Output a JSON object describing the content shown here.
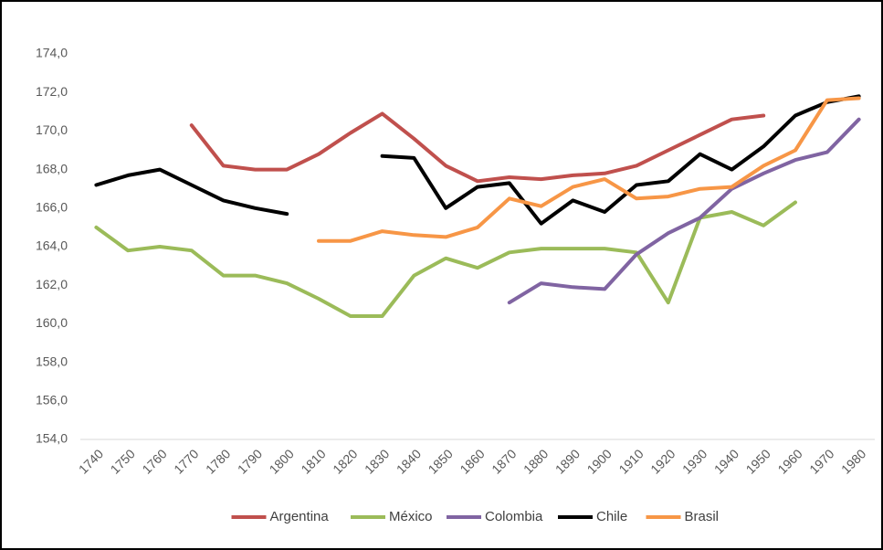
{
  "chart_data": {
    "type": "line",
    "categories": [
      "1740",
      "1750",
      "1760",
      "1770",
      "1780",
      "1790",
      "1800",
      "1810",
      "1820",
      "1830",
      "1840",
      "1850",
      "1860",
      "1870",
      "1880",
      "1890",
      "1900",
      "1910",
      "1920",
      "1930",
      "1940",
      "1950",
      "1960",
      "1970",
      "1980"
    ],
    "series": [
      {
        "name": "Argentina",
        "color": "#c0504d",
        "values": [
          null,
          null,
          null,
          170.3,
          168.2,
          168.0,
          168.0,
          168.8,
          169.9,
          170.9,
          169.6,
          168.2,
          167.4,
          167.6,
          167.5,
          167.7,
          167.8,
          168.2,
          169.0,
          169.8,
          170.6,
          170.8,
          null,
          null,
          null
        ]
      },
      {
        "name": "México",
        "color": "#9bbb59",
        "values": [
          165.0,
          163.8,
          164.0,
          163.8,
          162.5,
          162.5,
          162.1,
          161.3,
          160.4,
          160.4,
          162.5,
          163.4,
          162.9,
          163.7,
          163.9,
          163.9,
          163.9,
          163.7,
          161.1,
          165.5,
          165.8,
          165.1,
          166.3,
          null,
          null
        ]
      },
      {
        "name": "Colombia",
        "color": "#8064a2",
        "values": [
          null,
          null,
          null,
          null,
          null,
          null,
          null,
          null,
          null,
          null,
          null,
          null,
          null,
          161.1,
          162.1,
          161.9,
          161.8,
          163.6,
          164.7,
          165.5,
          167.0,
          167.8,
          168.5,
          168.9,
          170.6
        ]
      },
      {
        "name": "Chile",
        "color": "#000000",
        "values": [
          167.2,
          167.7,
          168.0,
          167.2,
          166.4,
          166.0,
          165.7,
          null,
          null,
          168.7,
          168.6,
          166.0,
          167.1,
          167.3,
          165.2,
          166.4,
          165.8,
          167.2,
          167.4,
          168.8,
          168.0,
          169.2,
          170.8,
          171.5,
          171.8
        ]
      },
      {
        "name": "Brasil",
        "color": "#f79646",
        "values": [
          null,
          null,
          null,
          null,
          null,
          null,
          null,
          164.3,
          164.3,
          164.8,
          164.6,
          164.5,
          165.0,
          166.5,
          166.1,
          167.1,
          167.5,
          166.5,
          166.6,
          167.0,
          167.1,
          168.2,
          169.0,
          171.6,
          171.7
        ]
      }
    ],
    "ylim": [
      154,
      174
    ],
    "yticks": [
      {
        "value": 154,
        "label": "154,0"
      },
      {
        "value": 156,
        "label": "156,0"
      },
      {
        "value": 158,
        "label": "158,0"
      },
      {
        "value": 160,
        "label": "160,0"
      },
      {
        "value": 162,
        "label": "162,0"
      },
      {
        "value": 164,
        "label": "164,0"
      },
      {
        "value": 166,
        "label": "166,0"
      },
      {
        "value": 168,
        "label": "168,0"
      },
      {
        "value": 170,
        "label": "170,0"
      },
      {
        "value": 172,
        "label": "172,0"
      },
      {
        "value": 174,
        "label": "174,0"
      }
    ],
    "grid": false,
    "legend": "bottom"
  }
}
